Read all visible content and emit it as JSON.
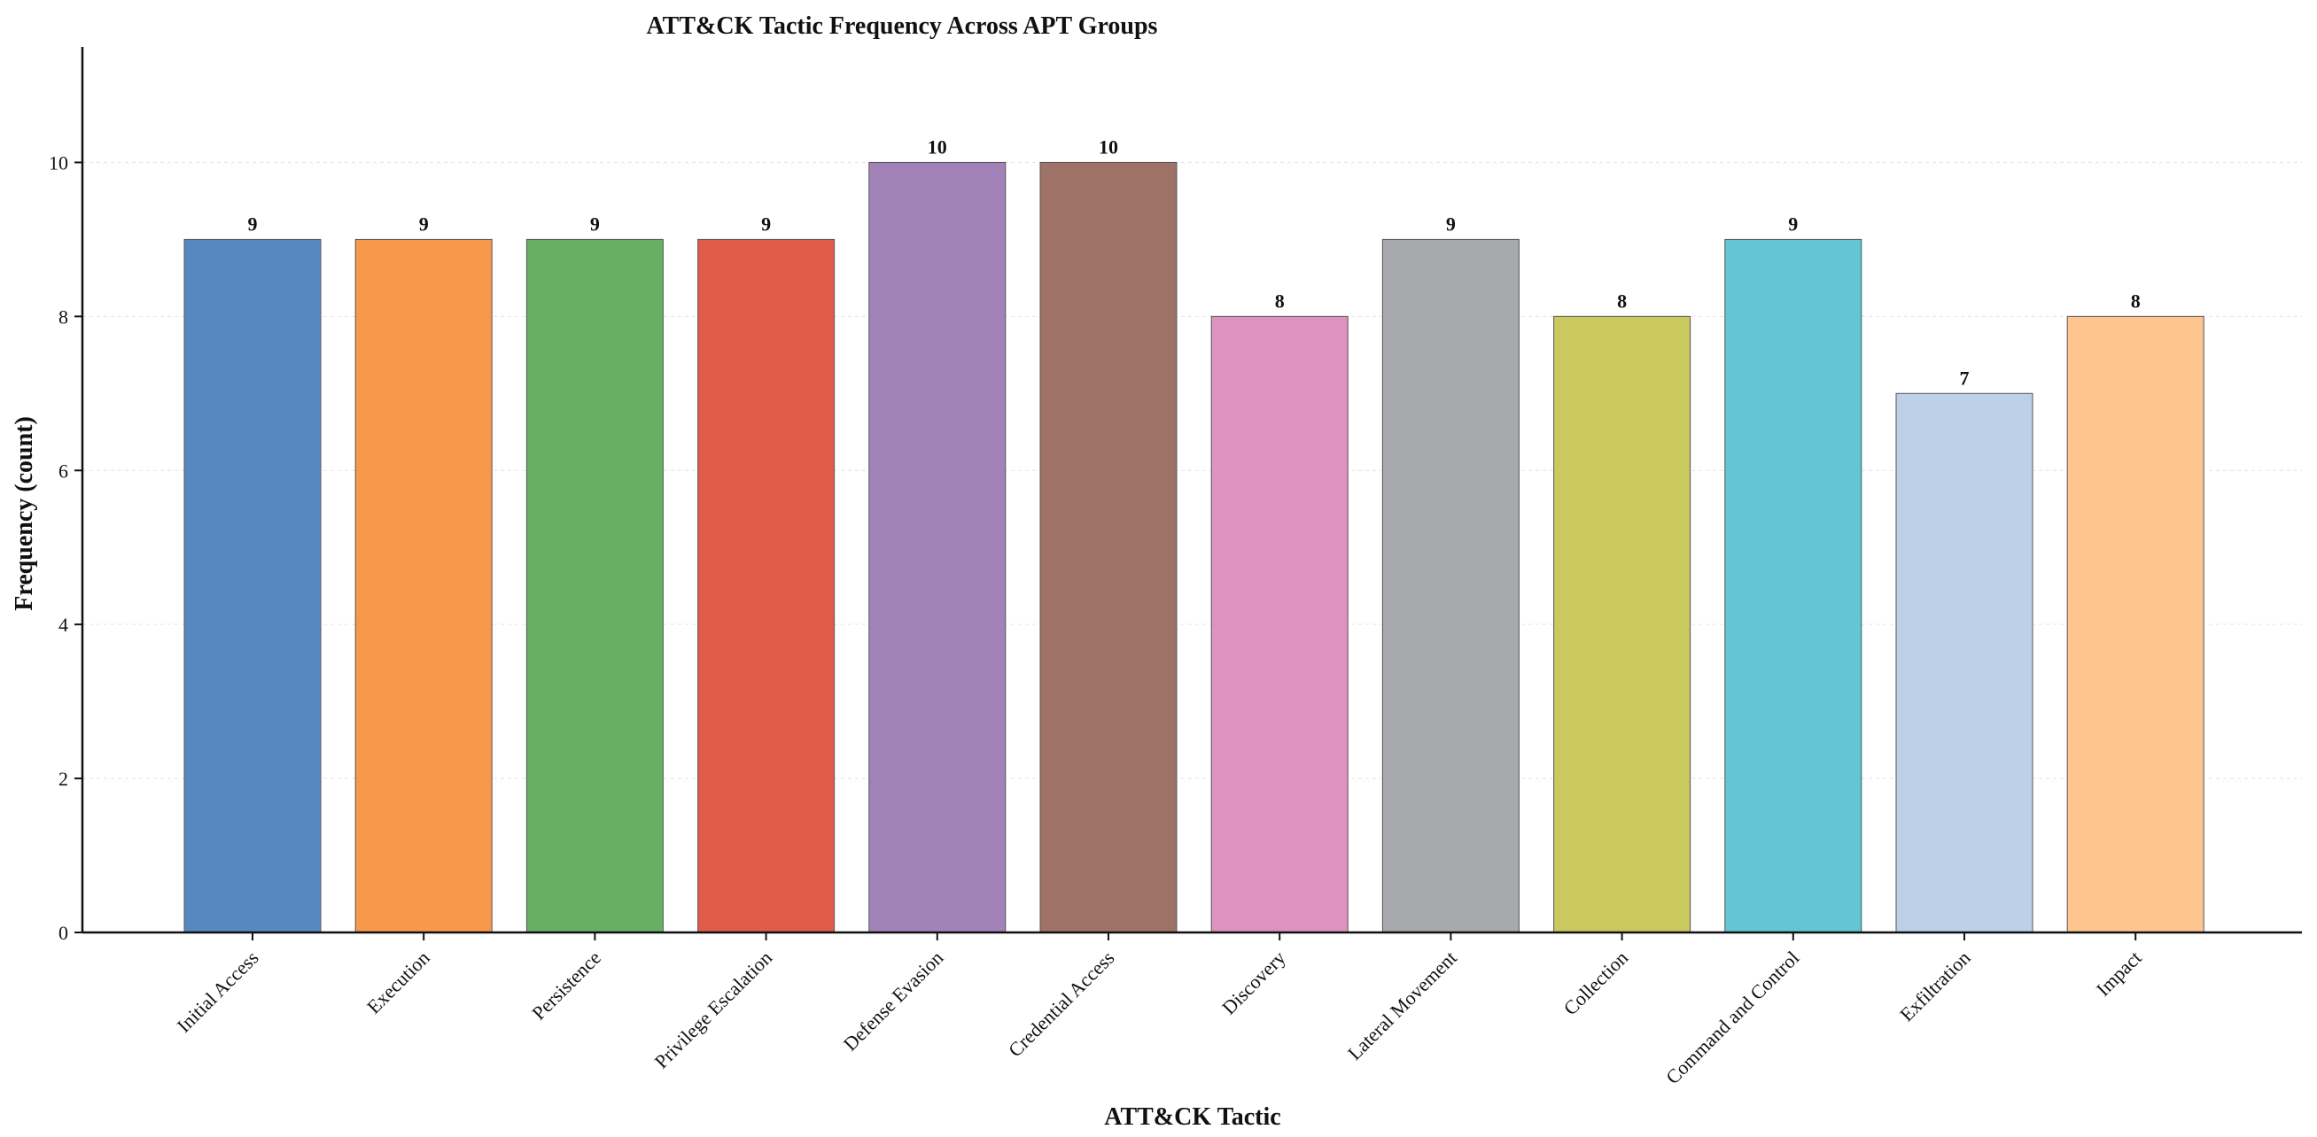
{
  "chart_data": {
    "type": "bar",
    "title": "ATT&CK Tactic Frequency Across APT Groups",
    "xlabel": "ATT&CK Tactic",
    "ylabel": "Frequency (count)",
    "ylim": [
      0,
      11.5
    ],
    "yticks": [
      0,
      2,
      4,
      6,
      8,
      10
    ],
    "grid": "horizontal-dashed",
    "categories": [
      "Initial Access",
      "Execution",
      "Persistence",
      "Privilege Escalation",
      "Defense Evasion",
      "Credential Access",
      "Discovery",
      "Lateral Movement",
      "Collection",
      "Command and Control",
      "Exfiltration",
      "Impact"
    ],
    "values": [
      9,
      9,
      9,
      9,
      10,
      10,
      8,
      9,
      8,
      9,
      7,
      8
    ],
    "colors": [
      "#5689c0",
      "#f7984a",
      "#67b063",
      "#e05c48",
      "#a283b8",
      "#9e7266",
      "#de92c0",
      "#a8a9ad",
      "#cac95f",
      "#62c6d5",
      "#bcd0e8",
      "#fec68e"
    ]
  }
}
